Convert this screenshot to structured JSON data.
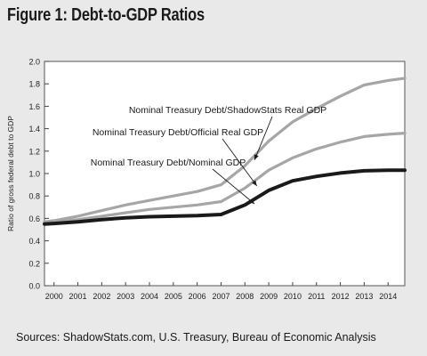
{
  "figure_title": "Figure 1: Debt-to-GDP Ratios",
  "sources": "Sources: ShadowStats.com, U.S. Treasury, Bureau of Economic Analysis",
  "chart_data": {
    "type": "line",
    "title": "",
    "xlabel": "",
    "ylabel": "Ratio of gross federal debt to GDP",
    "x": [
      "2000",
      "2001",
      "2002",
      "2003",
      "2004",
      "2005",
      "2006",
      "2007",
      "2008",
      "2009",
      "2010",
      "2011",
      "2012",
      "2013",
      "2014"
    ],
    "xlim": [
      1999.6,
      2014.7
    ],
    "ylim": [
      0,
      2.0
    ],
    "yticks": [
      "0.0",
      "0.2",
      "0.4",
      "0.6",
      "0.8",
      "1.0",
      "1.2",
      "1.4",
      "1.6",
      "1.8",
      "2.0"
    ],
    "grid": false,
    "legend": "none",
    "series": [
      {
        "name": "Nominal Treasury Debt/ShadowStats Real GDP",
        "color": "#a6a6a6",
        "width": 3.2,
        "points": [
          [
            1999.6,
            0.57
          ],
          [
            2000,
            0.58
          ],
          [
            2001,
            0.62
          ],
          [
            2002,
            0.67
          ],
          [
            2003,
            0.72
          ],
          [
            2004,
            0.76
          ],
          [
            2005,
            0.8
          ],
          [
            2006,
            0.84
          ],
          [
            2007,
            0.9
          ],
          [
            2008,
            1.07
          ],
          [
            2009,
            1.29
          ],
          [
            2010,
            1.46
          ],
          [
            2011,
            1.58
          ],
          [
            2012,
            1.69
          ],
          [
            2013,
            1.79
          ],
          [
            2014,
            1.83
          ],
          [
            2014.7,
            1.85
          ]
        ]
      },
      {
        "name": "Nominal Treasury Debt/Official Real GDP",
        "color": "#a6a6a6",
        "width": 3.2,
        "points": [
          [
            1999.6,
            0.56
          ],
          [
            2000,
            0.57
          ],
          [
            2001,
            0.59
          ],
          [
            2002,
            0.62
          ],
          [
            2003,
            0.65
          ],
          [
            2004,
            0.68
          ],
          [
            2005,
            0.7
          ],
          [
            2006,
            0.72
          ],
          [
            2007,
            0.75
          ],
          [
            2008,
            0.87
          ],
          [
            2009,
            1.03
          ],
          [
            2010,
            1.14
          ],
          [
            2011,
            1.22
          ],
          [
            2012,
            1.28
          ],
          [
            2013,
            1.33
          ],
          [
            2014,
            1.35
          ],
          [
            2014.7,
            1.36
          ]
        ]
      },
      {
        "name": "Nominal Treasury Debt/Nominal GDP",
        "color": "#1a1a1a",
        "width": 4,
        "points": [
          [
            1999.6,
            0.55
          ],
          [
            2000,
            0.555
          ],
          [
            2001,
            0.57
          ],
          [
            2002,
            0.59
          ],
          [
            2003,
            0.605
          ],
          [
            2004,
            0.615
          ],
          [
            2005,
            0.62
          ],
          [
            2006,
            0.625
          ],
          [
            2007,
            0.635
          ],
          [
            2008,
            0.72
          ],
          [
            2009,
            0.85
          ],
          [
            2010,
            0.935
          ],
          [
            2011,
            0.975
          ],
          [
            2012,
            1.005
          ],
          [
            2013,
            1.025
          ],
          [
            2014,
            1.03
          ],
          [
            2014.7,
            1.03
          ]
        ]
      }
    ],
    "annotations": [
      {
        "text": "Nominal Treasury Debt/ShadowStats Real GDP",
        "series": 0,
        "arrow_to": [
          2008.4,
          1.12
        ]
      },
      {
        "text": "Nominal Treasury Debt/Official Real GDP",
        "series": 1,
        "arrow_to": [
          2008.5,
          0.89
        ]
      },
      {
        "text": "Nominal Treasury Debt/Nominal GDP",
        "series": 2,
        "arrow_to": [
          2008.4,
          0.73
        ]
      }
    ]
  }
}
